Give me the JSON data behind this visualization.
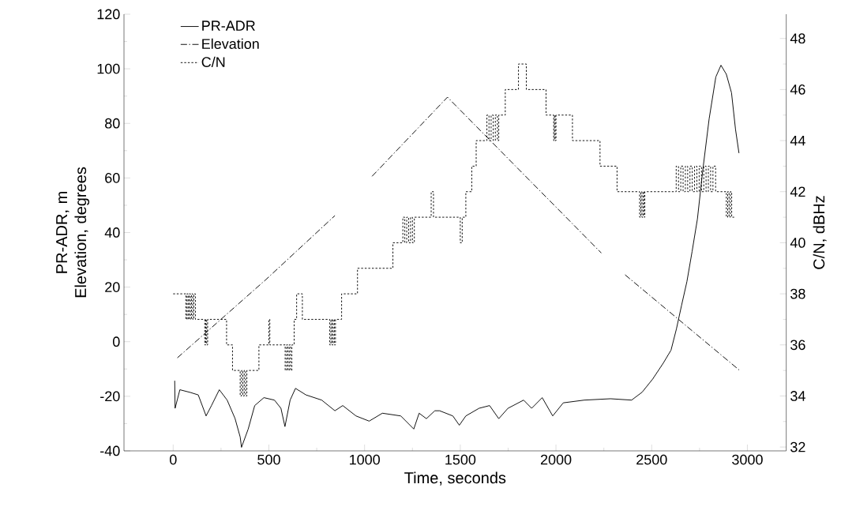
{
  "chart_data": {
    "type": "line",
    "xlabel": "Time, seconds",
    "ylabel": "PR-ADR, m Elevation, degrees",
    "y2label": "C/N, dBHz",
    "xlim": [
      -257,
      3203
    ],
    "xticks": [
      0,
      500,
      1000,
      1500,
      2000,
      2500,
      3000
    ],
    "ylim": [
      -40,
      120
    ],
    "yticks": [
      -40,
      -20,
      0,
      20,
      40,
      60,
      80,
      100,
      120
    ],
    "y2lim": [
      31.85,
      48.95
    ],
    "y2ticks": [
      32,
      34,
      36,
      38,
      40,
      42,
      44,
      46,
      48
    ],
    "legend": "top left",
    "grid": false,
    "marker": "none",
    "series": [
      {
        "name": "PR-ADR",
        "color": "#000000",
        "line_style": "solid",
        "x": [
          8,
          10,
          35,
          90,
          131,
          172,
          200,
          241,
          282,
          323,
          350,
          357,
          392,
          426,
          474,
          529,
          563,
          584,
          611,
          639,
          694,
          776,
          845,
          886,
          955,
          1024,
          1093,
          1189,
          1257,
          1285,
          1323,
          1367,
          1392,
          1461,
          1495,
          1529,
          1598,
          1653,
          1701,
          1749,
          1831,
          1873,
          1928,
          1983,
          2038,
          2148,
          2285,
          2395,
          2450,
          2505,
          2560,
          2601,
          2629,
          2656,
          2684,
          2711,
          2739,
          2766,
          2800,
          2835,
          2862,
          2890,
          2917,
          2938,
          2956
        ],
        "values": [
          -14.3,
          -24.4,
          -17.6,
          -18.6,
          -19.5,
          -27.2,
          -23.4,
          -17.6,
          -21.4,
          -28.1,
          -34.9,
          -38.7,
          -32,
          -23.4,
          -20.5,
          -21.4,
          -24.4,
          -31.1,
          -21.4,
          -17.1,
          -19.5,
          -21.4,
          -25.3,
          -23.4,
          -27.2,
          -29.1,
          -26.2,
          -27.2,
          -32,
          -26.2,
          -28.2,
          -25.3,
          -25.3,
          -27.2,
          -30.6,
          -27.2,
          -24.4,
          -23.4,
          -28.2,
          -24.4,
          -21.4,
          -24.4,
          -20.5,
          -27.2,
          -22.4,
          -21.4,
          -20.9,
          -21.4,
          -18.5,
          -13.7,
          -7.9,
          -3.1,
          4.6,
          13.3,
          22,
          33,
          45,
          62.3,
          81.6,
          97,
          101.3,
          98,
          91.2,
          77.8,
          69.1
        ]
      },
      {
        "name": "Elevation",
        "color": "#000000",
        "line_style": "dashdot",
        "x": [
          22,
          485,
          845,
          940,
          1039,
          1433,
          2237,
          2300,
          2361,
          2961
        ],
        "values": [
          -5.9,
          22.8,
          46.2,
          null,
          60.6,
          89.6,
          32.5,
          null,
          24.5,
          -10.6
        ]
      },
      {
        "name": "C/N",
        "type": "step",
        "axis": "y2",
        "color": "#000000",
        "line_style": "dotted",
        "x": [
          0,
          66,
          72,
          78,
          84,
          90,
          96,
          102,
          108,
          116,
          165,
          170,
          175,
          180,
          279,
          310,
          350,
          357,
          364,
          371,
          378,
          385,
          448,
          500,
          505,
          585,
          592,
          599,
          606,
          613,
          620,
          632,
          645,
          675,
          818,
          824,
          830,
          836,
          842,
          848,
          880,
          963,
          1148,
          1200,
          1210,
          1220,
          1230,
          1240,
          1250,
          1260,
          1348,
          1360,
          1500,
          1510,
          1529,
          1560,
          1583,
          1639,
          1650,
          1661,
          1672,
          1683,
          1694,
          1701,
          1735,
          1804,
          1845,
          1948,
          1988,
          1992,
          1996,
          2000,
          2086,
          2230,
          2319,
          2437,
          2443,
          2449,
          2455,
          2461,
          2464,
          2628,
          2640,
          2652,
          2664,
          2676,
          2688,
          2700,
          2712,
          2724,
          2736,
          2748,
          2760,
          2772,
          2784,
          2796,
          2808,
          2820,
          2834,
          2890,
          2897,
          2904,
          2911,
          2918,
          2931
        ],
        "values": [
          38,
          37,
          38,
          37,
          38,
          37,
          38,
          37,
          38,
          37,
          36,
          37,
          36,
          37,
          36,
          35,
          34,
          35,
          34,
          35,
          34,
          35,
          36,
          37,
          36,
          35,
          36,
          35,
          36,
          35,
          36,
          37,
          38,
          37,
          36,
          37,
          36,
          37,
          36,
          37,
          38,
          39,
          40,
          41,
          40,
          41,
          40,
          41,
          40,
          41,
          42,
          41,
          40,
          41,
          42,
          43,
          44,
          45,
          44,
          45,
          44,
          45,
          44,
          45,
          46,
          47,
          46,
          45,
          44,
          45,
          44,
          45,
          44,
          43,
          42,
          41,
          42,
          41,
          42,
          41,
          42,
          43,
          42,
          43,
          42,
          43,
          42,
          43,
          42,
          43,
          42,
          43,
          42,
          43,
          42,
          43,
          42,
          43,
          42,
          41,
          42,
          41,
          42,
          41,
          41
        ]
      }
    ]
  }
}
